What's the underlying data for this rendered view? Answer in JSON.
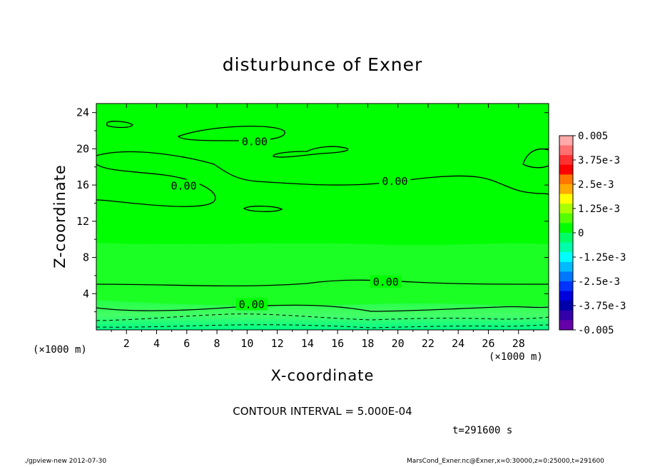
{
  "chart_data": {
    "type": "contour",
    "title": "disturbunce of Exner",
    "xlabel": "X-coordinate",
    "ylabel": "Z-coordinate",
    "x_unit": "(×1000 m)",
    "xlim": [
      0,
      30
    ],
    "ylim": [
      0,
      25
    ],
    "x_ticks": [
      2,
      4,
      6,
      8,
      10,
      12,
      14,
      16,
      18,
      20,
      22,
      24,
      26,
      28
    ],
    "y_ticks": [
      4,
      8,
      12,
      16,
      20,
      24
    ],
    "contour_labels": [
      {
        "text": "0.00",
        "x": 10.5,
        "z": 20.8
      },
      {
        "text": "0.00",
        "x": 5.8,
        "z": 15.9
      },
      {
        "text": "0.00",
        "x": 19.8,
        "z": 16.4
      },
      {
        "text": "0.00",
        "x": 19.2,
        "z": 5.3
      },
      {
        "text": "0.00",
        "x": 10.3,
        "z": 2.8
      }
    ],
    "colorbar": {
      "labels": [
        "0.005",
        "3.75e-3",
        "2.5e-3",
        "1.25e-3",
        "0",
        "-1.25e-3",
        "-2.5e-3",
        "-3.75e-3",
        "-0.005"
      ],
      "colors": [
        "#ffaaaa",
        "#ff7070",
        "#ff3030",
        "#ff0000",
        "#ff7700",
        "#ffaa00",
        "#ffff00",
        "#aaff00",
        "#55ff00",
        "#00ff00",
        "#00ff66",
        "#00ffaa",
        "#00ffff",
        "#00bbff",
        "#0077ff",
        "#0033ff",
        "#0000dd",
        "#0000aa",
        "#3300aa",
        "#6600aa"
      ]
    },
    "contour_interval": "CONTOUR INTERVAL = 5.000E-04",
    "time": "t=291600 s"
  },
  "footer": {
    "left": "./gpview-new  2012-07-30",
    "right": "MarsCond_Exner.nc@Exner,x=0:30000,z=0:25000,t=291600"
  },
  "colors": {
    "background": "#00ff00",
    "light_band": "#33ff44",
    "contour_line": "#000000"
  }
}
